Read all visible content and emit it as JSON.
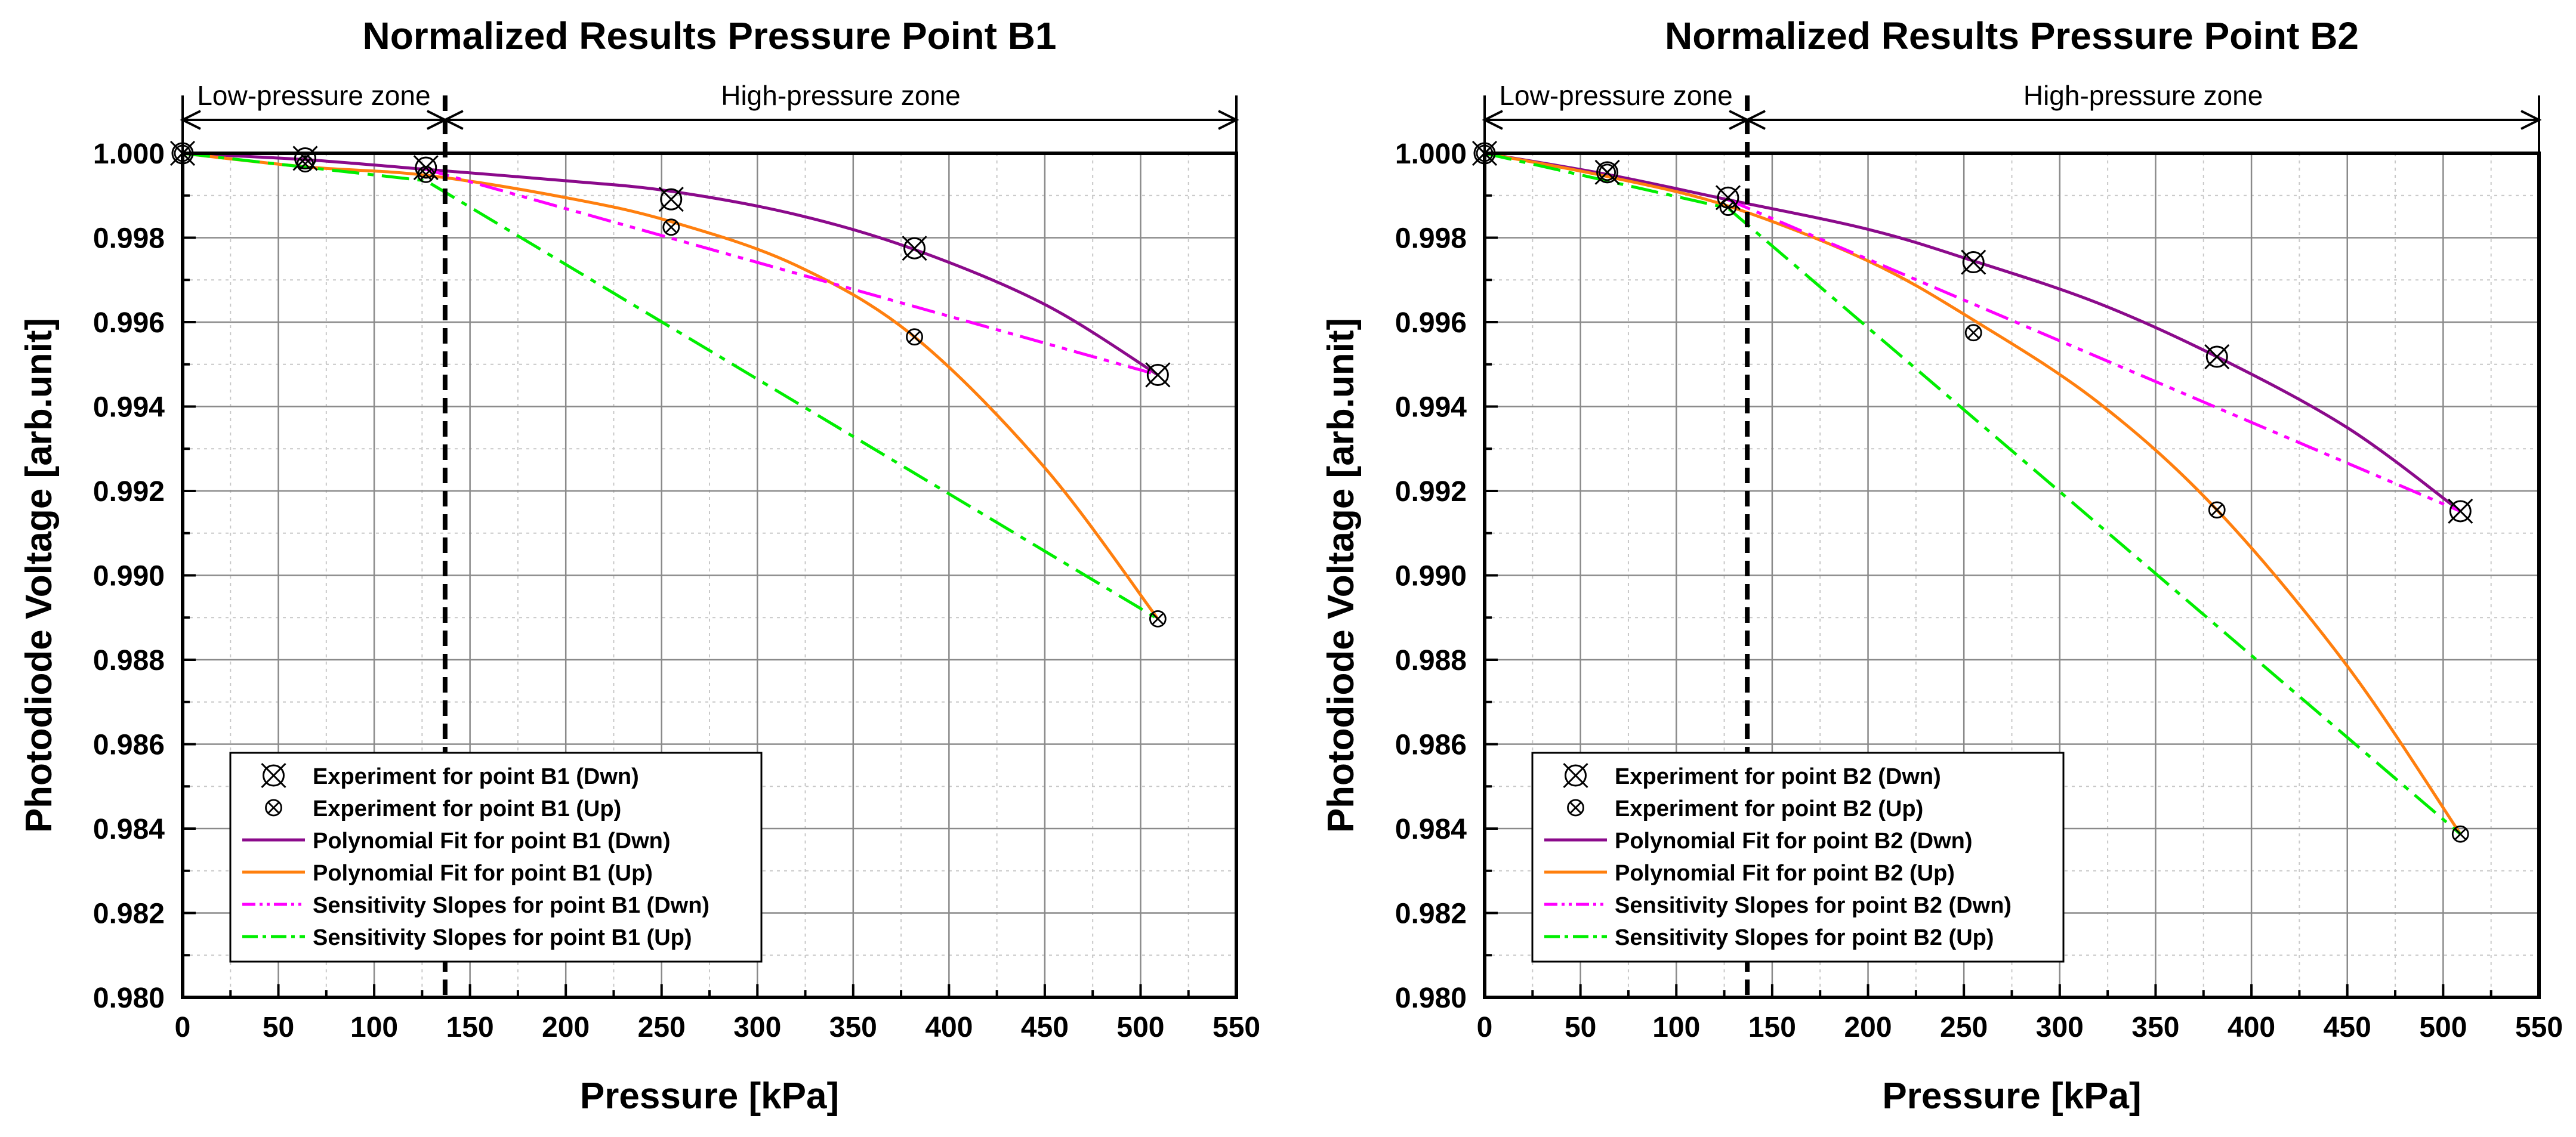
{
  "chart_data": [
    {
      "type": "scatter",
      "title": "Normalized Results Pressure Point B1",
      "xlabel": "Pressure [kPa]",
      "ylabel": "Photodiode Voltage [arb.unit]",
      "xlim": [
        0,
        550
      ],
      "ylim": [
        0.98,
        1.0
      ],
      "xticks": [
        "0",
        "50",
        "100",
        "150",
        "200",
        "250",
        "300",
        "350",
        "400",
        "450",
        "500",
        "550"
      ],
      "yticks": [
        "0.980",
        "0.982",
        "0.984",
        "0.986",
        "0.988",
        "0.990",
        "0.992",
        "0.994",
        "0.996",
        "0.998",
        "1.000"
      ],
      "grid": true,
      "zone_boundary": 137,
      "zones": [
        {
          "label": "Low-pressure zone",
          "from": 0,
          "to": 137
        },
        {
          "label": "High-pressure zone",
          "from": 137,
          "to": 550
        }
      ],
      "legend_position": "bottom-left",
      "series": [
        {
          "name": "Experiment for point B1 (Dwn)",
          "kind": "marker",
          "marker": "big",
          "color": "#000000",
          "x": [
            0,
            64,
            127,
            255,
            382,
            509
          ],
          "y": [
            1.0,
            0.99988,
            0.99966,
            0.99891,
            0.99775,
            0.99475
          ]
        },
        {
          "name": "Experiment for point B1 (Up)",
          "kind": "marker",
          "marker": "small",
          "color": "#000000",
          "x": [
            0,
            64,
            127,
            255,
            382,
            509
          ],
          "y": [
            1.0,
            0.99975,
            0.9995,
            0.99825,
            0.99565,
            0.98897
          ]
        },
        {
          "name": "Polynomial Fit for point B1 (Dwn)",
          "kind": "line",
          "style": "solid",
          "color": "#8B0A8B",
          "x": [
            0,
            64,
            127,
            200,
            255,
            320,
            382,
            450,
            509
          ],
          "y": [
            1.0,
            0.99985,
            0.99962,
            0.99935,
            0.9991,
            0.99855,
            0.99772,
            0.99642,
            0.99475
          ]
        },
        {
          "name": "Polynomial Fit for point B1 (Up)",
          "kind": "line",
          "style": "solid",
          "color": "#FF7F0E",
          "x": [
            0,
            64,
            127,
            200,
            255,
            320,
            382,
            450,
            509
          ],
          "y": [
            1.0,
            0.99968,
            0.99948,
            0.99895,
            0.99838,
            0.99735,
            0.99565,
            0.99255,
            0.98897
          ]
        },
        {
          "name": "Sensitivity Slopes for point B1 (Dwn)",
          "kind": "line",
          "style": "dashdotdot",
          "color": "#FF00FF",
          "x": [
            127,
            509
          ],
          "y": [
            0.99962,
            0.99475
          ]
        },
        {
          "name": "Sensitivity Slopes for point B1 (Up)",
          "kind": "line",
          "style": "dashdot",
          "color": "#00EE00",
          "x": [
            0,
            127,
            509
          ],
          "y": [
            1.0,
            0.99935,
            0.98897
          ]
        }
      ]
    },
    {
      "type": "scatter",
      "title": "Normalized Results Pressure Point B2",
      "xlabel": "Pressure [kPa]",
      "ylabel": "Photodiode Voltage [arb.unit]",
      "xlim": [
        0,
        550
      ],
      "ylim": [
        0.98,
        1.0
      ],
      "xticks": [
        "0",
        "50",
        "100",
        "150",
        "200",
        "250",
        "300",
        "350",
        "400",
        "450",
        "500",
        "550"
      ],
      "yticks": [
        "0.980",
        "0.982",
        "0.984",
        "0.986",
        "0.988",
        "0.990",
        "0.992",
        "0.994",
        "0.996",
        "0.998",
        "1.000"
      ],
      "grid": true,
      "zone_boundary": 137,
      "zones": [
        {
          "label": "Low-pressure zone",
          "from": 0,
          "to": 137
        },
        {
          "label": "High-pressure zone",
          "from": 137,
          "to": 550
        }
      ],
      "legend_position": "bottom-left",
      "series": [
        {
          "name": "Experiment for point B2 (Dwn)",
          "kind": "marker",
          "marker": "big",
          "color": "#000000",
          "x": [
            0,
            64,
            127,
            255,
            382,
            509
          ],
          "y": [
            1.0,
            0.99955,
            0.99895,
            0.99742,
            0.99518,
            0.99152
          ]
        },
        {
          "name": "Experiment for point B2 (Up)",
          "kind": "marker",
          "marker": "small",
          "color": "#000000",
          "x": [
            0,
            64,
            127,
            255,
            382,
            509
          ],
          "y": [
            1.0,
            0.99955,
            0.99872,
            0.99575,
            0.99155,
            0.98387
          ]
        },
        {
          "name": "Polynomial Fit for point B2 (Dwn)",
          "kind": "line",
          "style": "solid",
          "color": "#8B0A8B",
          "x": [
            0,
            64,
            127,
            200,
            255,
            320,
            382,
            450,
            509
          ],
          "y": [
            1.0,
            0.9995,
            0.9989,
            0.9982,
            0.99745,
            0.99645,
            0.99518,
            0.9935,
            0.99152
          ]
        },
        {
          "name": "Polynomial Fit for point B2 (Up)",
          "kind": "line",
          "style": "solid",
          "color": "#FF7F0E",
          "x": [
            0,
            64,
            127,
            200,
            255,
            320,
            382,
            450,
            509
          ],
          "y": [
            1.0,
            0.99945,
            0.99875,
            0.99745,
            0.99605,
            0.9941,
            0.99155,
            0.98785,
            0.98387
          ]
        },
        {
          "name": "Sensitivity Slopes for point B2 (Dwn)",
          "kind": "line",
          "style": "dashdotdot",
          "color": "#FF00FF",
          "x": [
            127,
            509
          ],
          "y": [
            0.9989,
            0.99152
          ]
        },
        {
          "name": "Sensitivity Slopes for point B2 (Up)",
          "kind": "line",
          "style": "dashdot",
          "color": "#00EE00",
          "x": [
            0,
            127,
            509
          ],
          "y": [
            1.0,
            0.9987,
            0.98387
          ]
        }
      ]
    }
  ]
}
